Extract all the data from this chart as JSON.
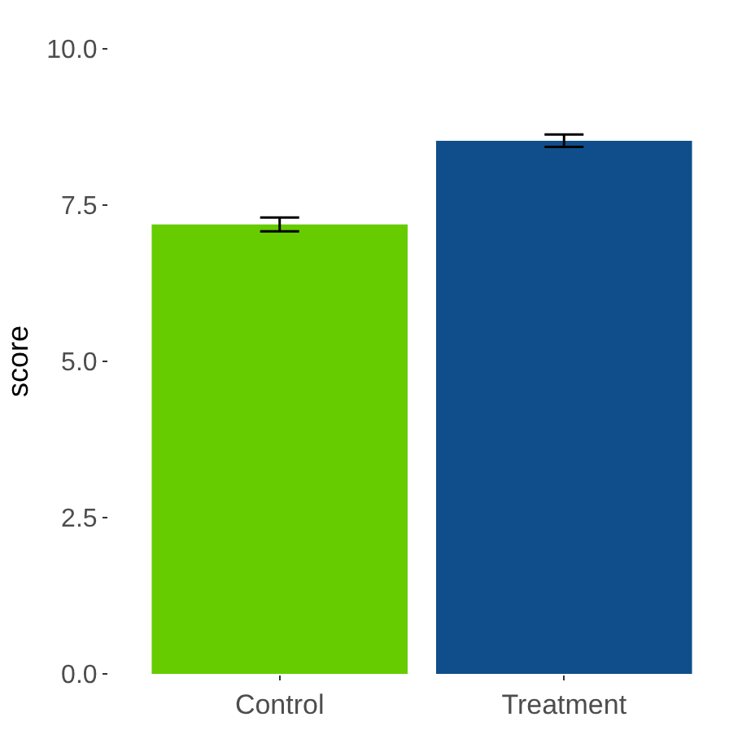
{
  "chart_data": {
    "type": "bar",
    "ylabel": "score",
    "categories": [
      "Control",
      "Treatment"
    ],
    "values": [
      7.19,
      8.53
    ],
    "errors": [
      0.11,
      0.1
    ],
    "colors": [
      "#66cc00",
      "#104e8b"
    ],
    "ylim": [
      0,
      10
    ],
    "yticks": [
      {
        "value": 0,
        "label": "0.0"
      },
      {
        "value": 2.5,
        "label": "2.5"
      },
      {
        "value": 5,
        "label": "5.0"
      },
      {
        "value": 7.5,
        "label": "7.5"
      },
      {
        "value": 10,
        "label": "10.0"
      }
    ]
  }
}
